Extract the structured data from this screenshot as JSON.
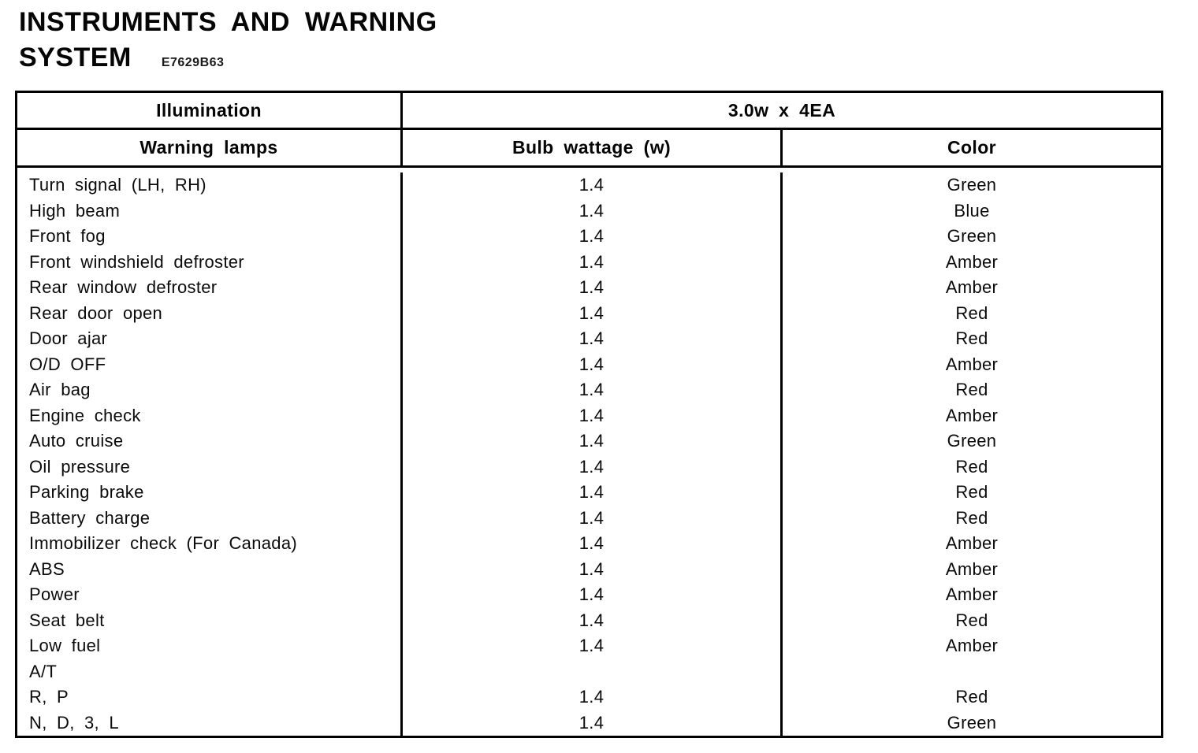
{
  "page": {
    "title_line1": "INSTRUMENTS AND WARNING",
    "title_line2": "SYSTEM",
    "doc_code": "E7629B63"
  },
  "table": {
    "header": {
      "illumination_label": "Illumination",
      "illumination_value": "3.0w x 4EA",
      "col_lamp": "Warning lamps",
      "col_wattage": "Bulb wattage (w)",
      "col_color": "Color"
    },
    "rows": [
      {
        "lamp": "Turn signal (LH, RH)",
        "wattage": "1.4",
        "color": "Green"
      },
      {
        "lamp": "High beam",
        "wattage": "1.4",
        "color": "Blue"
      },
      {
        "lamp": "Front fog",
        "wattage": "1.4",
        "color": "Green"
      },
      {
        "lamp": "Front windshield defroster",
        "wattage": "1.4",
        "color": "Amber"
      },
      {
        "lamp": "Rear window defroster",
        "wattage": "1.4",
        "color": "Amber"
      },
      {
        "lamp": "Rear door open",
        "wattage": "1.4",
        "color": "Red"
      },
      {
        "lamp": "Door ajar",
        "wattage": "1.4",
        "color": "Red"
      },
      {
        "lamp": "O/D OFF",
        "wattage": "1.4",
        "color": "Amber"
      },
      {
        "lamp": "Air bag",
        "wattage": "1.4",
        "color": "Red"
      },
      {
        "lamp": "Engine check",
        "wattage": "1.4",
        "color": "Amber"
      },
      {
        "lamp": "Auto cruise",
        "wattage": "1.4",
        "color": "Green"
      },
      {
        "lamp": "Oil pressure",
        "wattage": "1.4",
        "color": "Red"
      },
      {
        "lamp": "Parking brake",
        "wattage": "1.4",
        "color": "Red"
      },
      {
        "lamp": "Battery charge",
        "wattage": "1.4",
        "color": "Red"
      },
      {
        "lamp": "Immobilizer check (For Canada)",
        "wattage": "1.4",
        "color": "Amber"
      },
      {
        "lamp": "ABS",
        "wattage": "1.4",
        "color": "Amber"
      },
      {
        "lamp": "Power",
        "wattage": "1.4",
        "color": "Amber"
      },
      {
        "lamp": "Seat belt",
        "wattage": "1.4",
        "color": "Red"
      },
      {
        "lamp": "Low fuel",
        "wattage": "1.4",
        "color": "Amber"
      },
      {
        "lamp": "A/T",
        "wattage": "",
        "color": ""
      },
      {
        "lamp": "R, P",
        "wattage": "1.4",
        "color": "Red"
      },
      {
        "lamp": "N, D, 3, L",
        "wattage": "1.4",
        "color": "Green"
      }
    ]
  }
}
